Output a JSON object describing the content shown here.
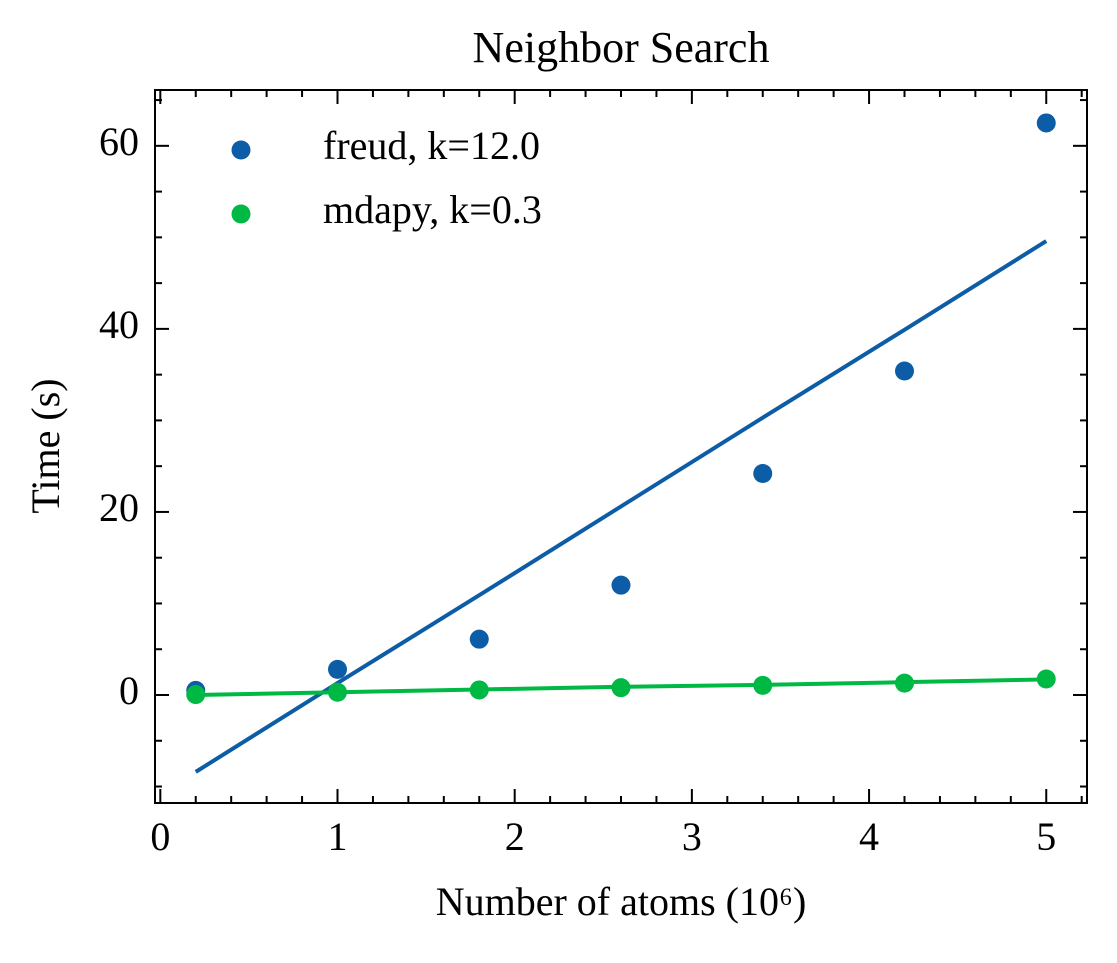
{
  "chart_data": {
    "type": "scatter",
    "title": "Neighbor Search",
    "xlabel": "Number of atoms (10⁶)",
    "ylabel": "Time (s)",
    "x": [
      0.2,
      1,
      1.8,
      2.6,
      3.4,
      4.2,
      5
    ],
    "series": [
      {
        "name": "freud, k=12.0",
        "color": "#0c5da5",
        "values": [
          0.5,
          2.8,
          6.1,
          12.0,
          24.2,
          35.4,
          62.5
        ],
        "fit": [
          -8.4,
          1.3,
          10.9,
          20.6,
          30.3,
          39.9,
          49.6
        ]
      },
      {
        "name": "mdapy, k=0.3",
        "color": "#00b945",
        "values": [
          0.05,
          0.3,
          0.55,
          0.8,
          1.05,
          1.3,
          1.75
        ],
        "fit": [
          0.0,
          0.3,
          0.6,
          0.9,
          1.1,
          1.4,
          1.7
        ]
      }
    ],
    "xlim": [
      -0.03,
      5.23
    ],
    "ylim": [
      -11.8,
      66.1
    ],
    "xticks": [
      0,
      1,
      2,
      3,
      4,
      5
    ],
    "yticks": [
      0,
      20,
      40,
      60
    ],
    "xminorticks": [
      0.2,
      0.4,
      0.6,
      0.8,
      1.2,
      1.4,
      1.6,
      1.8,
      2.2,
      2.4,
      2.6,
      2.8,
      3.2,
      3.4,
      3.6,
      3.8,
      4.2,
      4.4,
      4.6,
      4.8,
      5.2
    ],
    "yminorticks": [
      -10,
      -5,
      5,
      10,
      15,
      25,
      30,
      35,
      45,
      50,
      55,
      65
    ],
    "legend": "upper left"
  }
}
